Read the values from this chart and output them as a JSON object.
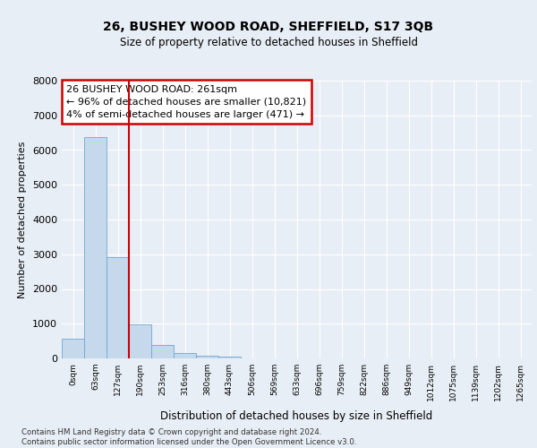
{
  "title": "26, BUSHEY WOOD ROAD, SHEFFIELD, S17 3QB",
  "subtitle": "Size of property relative to detached houses in Sheffield",
  "xlabel": "Distribution of detached houses by size in Sheffield",
  "ylabel": "Number of detached properties",
  "bar_color": "#c5d8ec",
  "bar_edge_color": "#6fa8d0",
  "vline_color": "#cc0000",
  "vline_x": 3.0,
  "annotation_text": "26 BUSHEY WOOD ROAD: 261sqm\n← 96% of detached houses are smaller (10,821)\n4% of semi-detached houses are larger (471) →",
  "annotation_box_color": "#ffffff",
  "annotation_box_edge": "#cc0000",
  "categories": [
    "0sqm",
    "63sqm",
    "127sqm",
    "190sqm",
    "253sqm",
    "316sqm",
    "380sqm",
    "443sqm",
    "506sqm",
    "569sqm",
    "633sqm",
    "696sqm",
    "759sqm",
    "822sqm",
    "886sqm",
    "949sqm",
    "1012sqm",
    "1075sqm",
    "1139sqm",
    "1202sqm",
    "1265sqm"
  ],
  "values": [
    580,
    6380,
    2920,
    970,
    380,
    155,
    80,
    55,
    0,
    0,
    0,
    0,
    0,
    0,
    0,
    0,
    0,
    0,
    0,
    0,
    0
  ],
  "ylim": [
    0,
    8000
  ],
  "yticks": [
    0,
    1000,
    2000,
    3000,
    4000,
    5000,
    6000,
    7000,
    8000
  ],
  "footer": "Contains HM Land Registry data © Crown copyright and database right 2024.\nContains public sector information licensed under the Open Government Licence v3.0.",
  "bg_color": "#e8eef5",
  "plot_bg_color": "#e8eef5",
  "grid_color": "#ffffff"
}
